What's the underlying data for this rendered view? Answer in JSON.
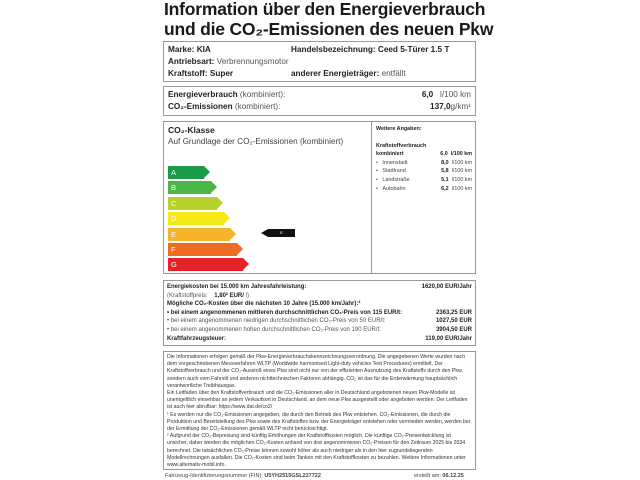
{
  "title": {
    "line1": "Information über den Energieverbrauch",
    "line2": "und die CO₂-Emissionen des neuen Pkw"
  },
  "vehicle": {
    "brand_label": "Marke:",
    "brand": "KIA",
    "trade_label": "Handelsbezeichnung:",
    "trade": "Ceed 5-Türer 1.5 T",
    "drive_label": "Antriebsart:",
    "drive": "Verbrennungsmotor",
    "fuel_label": "Kraftstoff:",
    "fuel": "Super",
    "other_label": "anderer Energieträger:",
    "other": "entfällt"
  },
  "consumption": {
    "energy_label": "Energieverbrauch",
    "energy_note": "(kombiniert):",
    "energy_value": "6,0",
    "energy_unit": "l/100 km",
    "co2_label": "CO₂-Emissionen",
    "co2_note": "(kombiniert):",
    "co2_value": "137,0",
    "co2_unit": "g/km¹"
  },
  "co2_class": {
    "heading": "CO₂-Klasse",
    "subtitle": "Auf Grundlage der CO₂-Emissionen (kombiniert)",
    "classes": [
      {
        "letter": "A",
        "color": "#1a9b48"
      },
      {
        "letter": "B",
        "color": "#4cb748"
      },
      {
        "letter": "C",
        "color": "#b7d22c"
      },
      {
        "letter": "D",
        "color": "#f4e818"
      },
      {
        "letter": "E",
        "color": "#f6b42a"
      },
      {
        "letter": "F",
        "color": "#ef6b22"
      },
      {
        "letter": "G",
        "color": "#e3222a"
      }
    ],
    "current": "E"
  },
  "further": {
    "heading": "Weitere Angaben:",
    "sub": "Kraftstoffverbrauch",
    "combined_label": "kombiniert",
    "combined_value": "6,0",
    "combined_unit": "l/100 km",
    "items": [
      {
        "label": "Innenstadt",
        "value": "8,0",
        "unit": "l/100 km"
      },
      {
        "label": "Stadtrand",
        "value": "5,8",
        "unit": "l/100 km"
      },
      {
        "label": "Landstraße",
        "value": "5,1",
        "unit": "l/100 km"
      },
      {
        "label": "Autobahn",
        "value": "6,2",
        "unit": "l/100 km"
      }
    ]
  },
  "costs": {
    "energy_label": "Energiekosten bei 15.000 km Jahresfahrleistung:",
    "energy_value": "1620,00 EUR/Jahr",
    "fuelprice_label": "(Kraftstoffpreis:",
    "fuelprice_value": "1,80² EUR/",
    "fuelprice_unit": "l)",
    "co2_heading": "Mögliche CO₂-Kosten über die nächsten 10 Jahre (15.000 km/Jahr):²",
    "mid_label": "bei einem angenommenen mittleren durchschnittlichen CO₂-Preis von  115  EUR/t:",
    "mid_value": "2363,25 EUR",
    "low_label": "bei einem angenommenen niedrigen durchschnittlichen CO₂-Preis von   50  EUR/t:",
    "low_value": "1027,50 EUR",
    "high_label": "bei einem angenommenen hohen durchschnittlichen CO₂-Preis von  190  EUR/t:",
    "high_value": "3904,50 EUR",
    "tax_label": "Kraftfahrzeugsteuer:",
    "tax_value": "119,00 EUR/Jahr"
  },
  "notes": {
    "p1": "Die Informationen erfolgen gemäß der Pkw-Energieverbrauchskennzeichnungsverordnung. Die angegebenen Werte wurden nach dem vorgeschriebenen Messverfahren WLTP (Worldwide harmonised Light-duty vehicles Test Procedures) ermittelt. Der Kraftstoffverbrauch und der CO₂-Ausstoß eines Pkw sind nicht nur von der effizienten Ausnutzung des Kraftstoffs durch den Pkw, sondern auch vom Fahrstil und anderen nichttechnischen Faktoren abhängig. CO₂ ist das für die Erderwärmung hauptsächlich verantwortliche Treibhausgas.",
    "p2": "Ein Leitfaden über den Kraftstoffverbrauch und die CO₂-Emissionen aller in Deutschland angebotenen neuen Pkw-Modelle ist unentgeltlich einsehbar an jedem Verkaufsort in Deutschland, an dem neue Pkw ausgestellt oder angeboten werden. Der Leitfaden ist auch hier abrufbar:  https://www.dat.de/co2/",
    "f1": "¹ Es werden nur die CO₂-Emissionen angegeben, die durch den Betrieb des Pkw entstehen. CO₂-Emissionen, die durch die Produktion und Bereitstellung des Pkw sowie des Kraftstoffes bzw. der Energieträger entstehen oder vermieden werden, werden bei der Ermittlung der CO₂-Emissionen gemäß WLTP nicht berücksichtigt.",
    "f2": "² Aufgrund der CO₂-Bepreisung sind künftig Erhöhungen der Kraftstoffkosten möglich. Die künftige CO₂-Preisentwicklung ist unsicher, daher werden die möglichen CO₂-Kosten anhand von drei angenommenen CO₂-Preisen für den Zeitraum  2025  bis  2034  berechnet. Die tatsächlichen CO₂-Preise können sowohl höher als auch niedriger als in den hier zugrundeliegenden Modellrechnungen ausfallen. Die CO₂-Kosten sind beim Tanken mit den Kraftstoffkosten zu bezahlen. Weitere Informationen unter www.alternativ-mobil.info."
  },
  "footer": {
    "vin_label": "Fahrzeug-Identifizierungsnummer (FIN):",
    "vin": "U5YH2515GSL227722",
    "date_label": "erstellt am:",
    "date": "06.12.25"
  }
}
